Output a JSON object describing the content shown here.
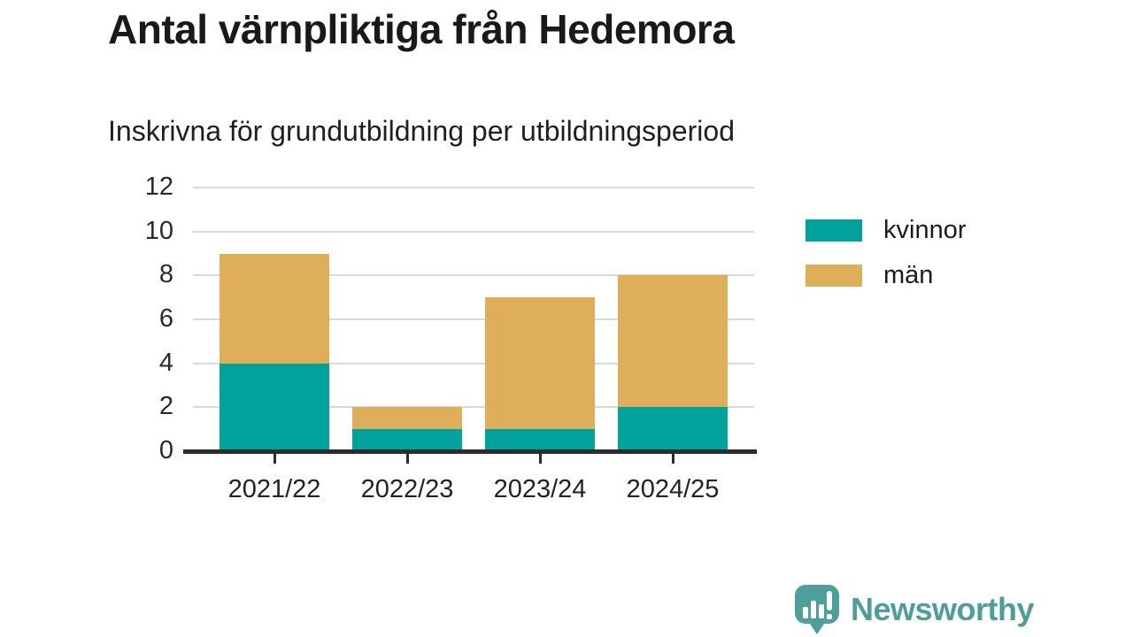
{
  "header": {
    "title": "Antal värnpliktiga från Hedemora",
    "subtitle": "Inskrivna för grundutbildning per utbildningsperiod"
  },
  "chart_data": {
    "type": "bar",
    "stacked": true,
    "title": "Antal värnpliktiga från Hedemora",
    "subtitle": "Inskrivna för grundutbildning per utbildningsperiod",
    "categories": [
      "2021/22",
      "2022/23",
      "2023/24",
      "2024/25"
    ],
    "series": [
      {
        "name": "kvinnor",
        "color": "#00a39b",
        "values": [
          4,
          1,
          1,
          2
        ]
      },
      {
        "name": "män",
        "color": "#dfae5b",
        "values": [
          5,
          1,
          6,
          6
        ]
      }
    ],
    "stack_totals": [
      9,
      2,
      7,
      8
    ],
    "xlabel": "",
    "ylabel": "",
    "ylim": [
      0,
      12
    ],
    "yticks": [
      0,
      2,
      4,
      6,
      8,
      10,
      12
    ],
    "grid": true,
    "legend_position": "right"
  },
  "branding": {
    "name": "Newsworthy",
    "logo_icon": "newsworthy-bubble-chart-icon",
    "color": "#4c9e98"
  },
  "colors": {
    "series_kvinnor": "#00a39b",
    "series_man": "#dfae5b",
    "axis": "#2d2d2d",
    "gridline": "#d9d9d9",
    "text": "#1a1a1a"
  }
}
